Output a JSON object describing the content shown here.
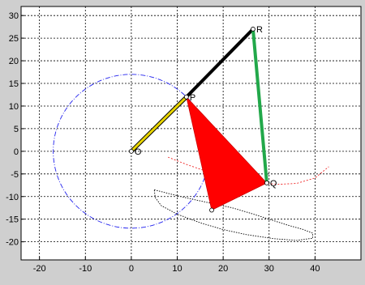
{
  "chart_data": {
    "type": "line",
    "title": "",
    "xlabel": "",
    "ylabel": "",
    "xlim": [
      -24,
      50
    ],
    "ylim": [
      -24,
      32
    ],
    "x_ticks": [
      -20,
      -10,
      0,
      10,
      20,
      30,
      40
    ],
    "y_ticks": [
      -20,
      -15,
      -10,
      -5,
      0,
      5,
      10,
      15,
      20,
      25,
      30
    ],
    "grid": true,
    "points": [
      {
        "name": "O",
        "x": 0,
        "y": 0
      },
      {
        "name": "P",
        "x": 12,
        "y": 12
      },
      {
        "name": "R",
        "x": 26.5,
        "y": 27
      },
      {
        "name": "Q",
        "x": 29.5,
        "y": -7
      }
    ],
    "links": [
      {
        "from": "O",
        "to": "P",
        "color": "#e8d400"
      },
      {
        "from": "P",
        "to": "R",
        "color": "#000000"
      },
      {
        "from": "R",
        "to": "Q",
        "color": "#22a84a"
      }
    ],
    "triangle": {
      "color": "#ff0000",
      "vertices": [
        [
          12,
          12
        ],
        [
          29.5,
          -7
        ],
        [
          17.5,
          -13
        ]
      ]
    },
    "circle": {
      "cx": 0,
      "cy": 0,
      "r": 17,
      "color": "#2222ee"
    },
    "red_arc": {
      "color": "#ee2222",
      "x": [
        8,
        12,
        16,
        20,
        24,
        28,
        32,
        36,
        40,
        43
      ],
      "y": [
        -1.3,
        -2.9,
        -4.3,
        -5.5,
        -6.4,
        -7.0,
        -7.3,
        -7.1,
        -5.9,
        -3.4
      ]
    },
    "coupler_curve": {
      "color": "#000000",
      "x": [
        5,
        8,
        12,
        17,
        22,
        26,
        30,
        34,
        37.5,
        39.5,
        39.5,
        36,
        31,
        25,
        20,
        15,
        10,
        6.5,
        5.2,
        5
      ],
      "y": [
        -8.5,
        -9.3,
        -10.3,
        -11.4,
        -12.5,
        -13.7,
        -15,
        -16.3,
        -17.3,
        -18.1,
        -19.2,
        -19.7,
        -19.3,
        -18.4,
        -17.3,
        -15.8,
        -13.9,
        -12,
        -10.2,
        -8.5
      ]
    }
  }
}
